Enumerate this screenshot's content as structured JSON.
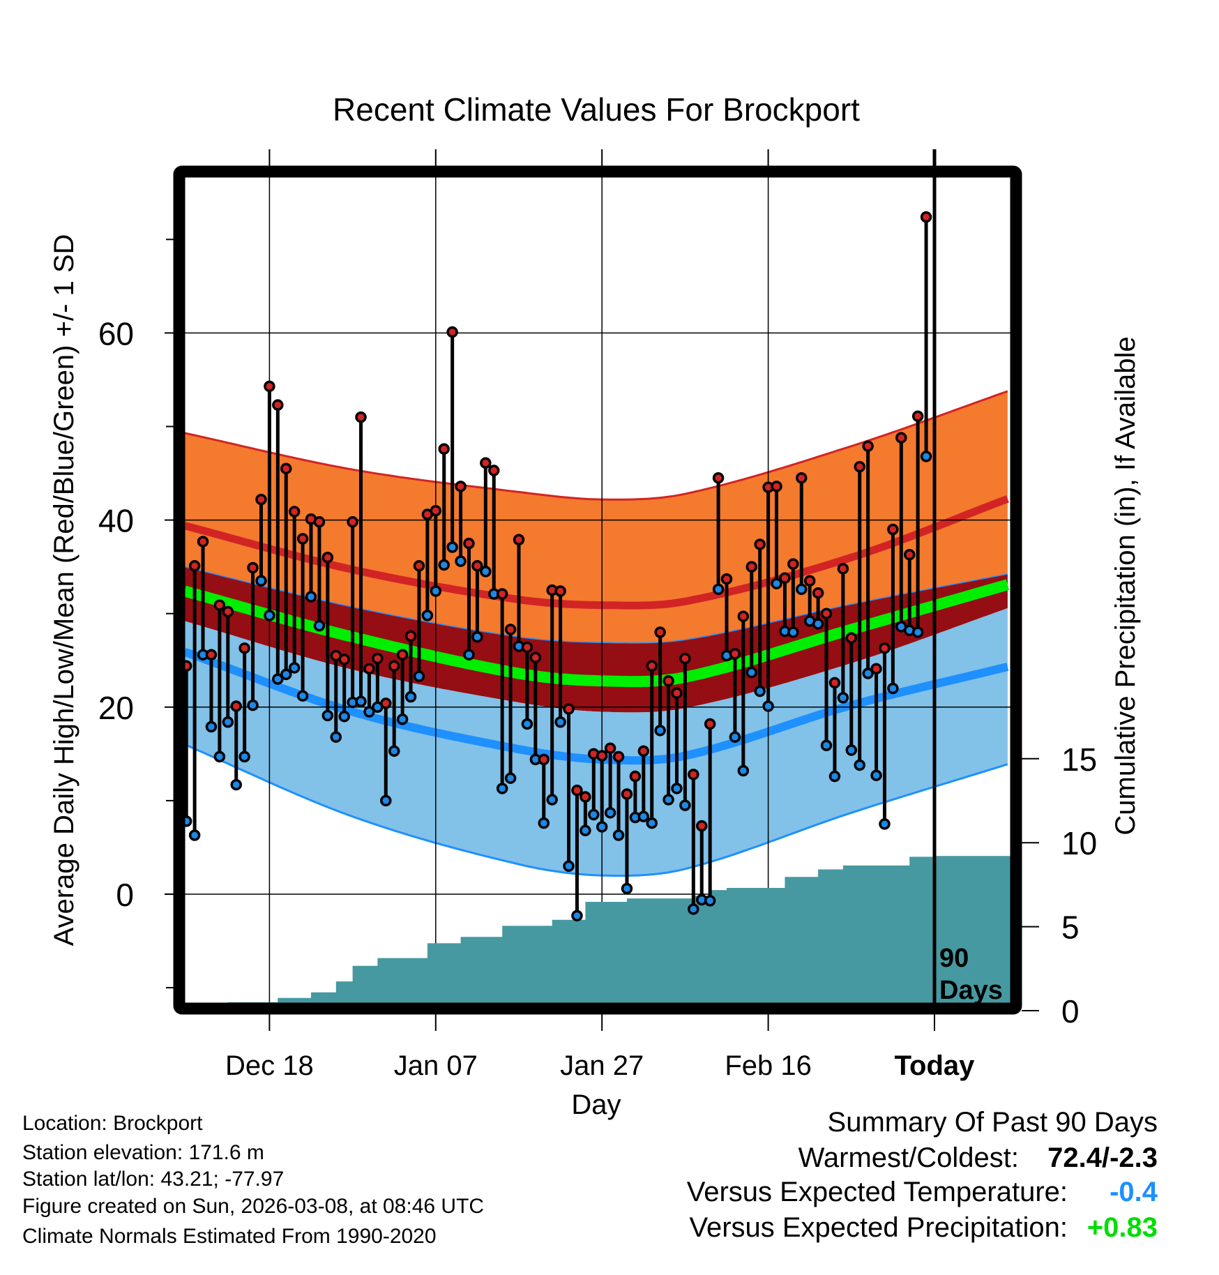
{
  "chart_data": {
    "type": "line",
    "title": "Recent Climate Values For Brockport",
    "xlabel": "Day",
    "ylabel": "Average Daily High/Low/Mean (Red/Blue/Green) +/- 1 SD",
    "y2label": "Cumulative Precipitation (in), If Available",
    "xlim": [
      -90.2,
      9.2
    ],
    "ylim": [
      -11.6,
      76.7
    ],
    "y2lim": [
      0,
      49
    ],
    "grid": true,
    "x_ticks": [
      {
        "day": -80,
        "label": "Dec 18",
        "bold": false
      },
      {
        "day": -60,
        "label": "Jan 07",
        "bold": false
      },
      {
        "day": -40,
        "label": "Jan 27",
        "bold": false
      },
      {
        "day": -20,
        "label": "Feb 16",
        "bold": false
      },
      {
        "day": 0,
        "label": "Today",
        "bold": true
      }
    ],
    "y_ticks": [
      {
        "value": 0,
        "label": "0"
      },
      {
        "value": 20,
        "label": "20"
      },
      {
        "value": 40,
        "label": "40"
      },
      {
        "value": 60,
        "label": "60"
      }
    ],
    "y_minor_ticks": [
      -10,
      10,
      30,
      50,
      70
    ],
    "y2_ticks": [
      {
        "value": 0,
        "label": "0"
      },
      {
        "value": 5,
        "label": "5"
      },
      {
        "value": 10,
        "label": "10"
      },
      {
        "value": 15,
        "label": "15"
      }
    ],
    "period_label": [
      "90",
      "Days"
    ],
    "days_start": -90,
    "highs": [
      24.4,
      35.1,
      37.7,
      25.6,
      30.9,
      30.2,
      20.1,
      26.3,
      34.9,
      42.2,
      54.3,
      52.3,
      45.5,
      40.9,
      38.0,
      40.1,
      39.8,
      36.0,
      25.5,
      25.1,
      39.8,
      51.0,
      24.1,
      25.2,
      20.4,
      24.4,
      25.6,
      27.6,
      35.1,
      40.6,
      41.0,
      47.6,
      60.1,
      43.6,
      37.5,
      35.1,
      46.1,
      45.3,
      32.1,
      28.3,
      37.9,
      26.4,
      25.3,
      14.4,
      32.5,
      32.4,
      19.8,
      11.1,
      10.4,
      15.0,
      14.8,
      15.6,
      14.7,
      10.7,
      12.6,
      15.3,
      24.4,
      28.0,
      22.8,
      21.5,
      25.2,
      12.8,
      7.3,
      18.2,
      44.5,
      33.7,
      25.7,
      29.7,
      35.0,
      37.4,
      43.5,
      43.6,
      33.8,
      35.3,
      44.5,
      33.5,
      32.2,
      30.0,
      22.6,
      34.8,
      27.4,
      45.7,
      47.9,
      24.1,
      26.3,
      39.0,
      48.8,
      36.3,
      51.1,
      72.4
    ],
    "lows": [
      7.8,
      6.3,
      25.6,
      17.9,
      14.7,
      18.4,
      11.7,
      14.7,
      20.2,
      33.5,
      29.8,
      23.0,
      23.5,
      24.2,
      21.2,
      31.8,
      28.7,
      19.1,
      16.8,
      19.0,
      20.5,
      20.6,
      19.5,
      20.0,
      10.0,
      15.3,
      18.7,
      21.1,
      23.3,
      29.8,
      32.4,
      35.2,
      37.1,
      35.6,
      25.6,
      27.5,
      34.5,
      32.1,
      11.3,
      12.4,
      26.5,
      18.2,
      14.4,
      7.6,
      10.1,
      18.4,
      3.0,
      -2.3,
      6.8,
      8.5,
      7.2,
      8.7,
      6.3,
      0.6,
      8.2,
      8.3,
      7.6,
      17.5,
      10.1,
      11.3,
      9.5,
      -1.6,
      -0.6,
      -0.7,
      32.6,
      25.5,
      16.8,
      13.2,
      23.7,
      21.7,
      20.1,
      33.2,
      28.1,
      28.0,
      32.6,
      29.2,
      28.9,
      15.9,
      12.6,
      21.0,
      15.4,
      13.8,
      23.6,
      12.7,
      7.5,
      22.0,
      28.6,
      28.2,
      28.0,
      46.8
    ],
    "normals": {
      "days": [
        -90.2,
        -70,
        -50,
        -40,
        -30,
        -10,
        9.2
      ],
      "high_plus_sd": [
        49.3,
        45.4,
        43.0,
        42.2,
        42.8,
        47.9,
        53.9
      ],
      "mean_high": [
        39.4,
        34.7,
        31.5,
        30.9,
        31.3,
        36.0,
        42.4
      ],
      "mean_plus_sd": [
        35.0,
        30.7,
        27.5,
        26.9,
        27.2,
        31.0,
        34.3
      ],
      "mean": [
        32.4,
        27.5,
        23.6,
        22.8,
        23.2,
        28.3,
        33.2
      ],
      "mean_minus_sd": [
        29.2,
        24.0,
        20.5,
        19.5,
        19.9,
        24.7,
        30.7
      ],
      "mean_low": [
        25.9,
        19.5,
        15.5,
        14.4,
        14.8,
        20.2,
        24.4
      ],
      "low_minus_sd": [
        16.0,
        8.3,
        3.2,
        2.0,
        2.7,
        8.7,
        14.0
      ]
    },
    "precip": {
      "days": [
        -90,
        -87,
        -85,
        -79,
        -75,
        -72,
        -70,
        -67,
        -61,
        -57,
        -52,
        -46,
        -42,
        -37,
        -29,
        -27,
        -25,
        -18,
        -14,
        -11,
        -3,
        0
      ],
      "cumulative": [
        0.3,
        0.41,
        0.5,
        0.76,
        1.09,
        1.74,
        2.67,
        3.13,
        4.01,
        4.39,
        5.05,
        5.41,
        6.48,
        6.68,
        6.84,
        7.18,
        7.31,
        7.96,
        8.41,
        8.64,
        9.16,
        9.21
      ]
    },
    "colors": {
      "orange": "#F47A2E",
      "red_line": "#D22424",
      "dark_red": "#950E14",
      "green": "#00EE00",
      "light_blue": "#82C1E8",
      "blue": "#1E90FF",
      "precip": "#4799A1",
      "high_dot": "#D22424",
      "low_dot": "#1E88E5"
    }
  },
  "footer_left": [
    "Location: Brockport",
    "Station elevation: 171.6 m",
    "Station lat/lon: 43.21; -77.97",
    "Figure created on Sun, 2026-03-08, at 08:46 UTC",
    "Climate Normals Estimated From 1990-2020"
  ],
  "summary": {
    "title": "Summary Of Past 90 Days",
    "warmest_label": "Warmest/Coldest:",
    "warmest_value": "72.4/-2.3",
    "temp_label": "Versus Expected Temperature:",
    "temp_value": "-0.4",
    "temp_color": "#1E90FF",
    "precip_label": "Versus Expected Precipitation:",
    "precip_value": "+0.83",
    "precip_color": "#00DD00"
  }
}
